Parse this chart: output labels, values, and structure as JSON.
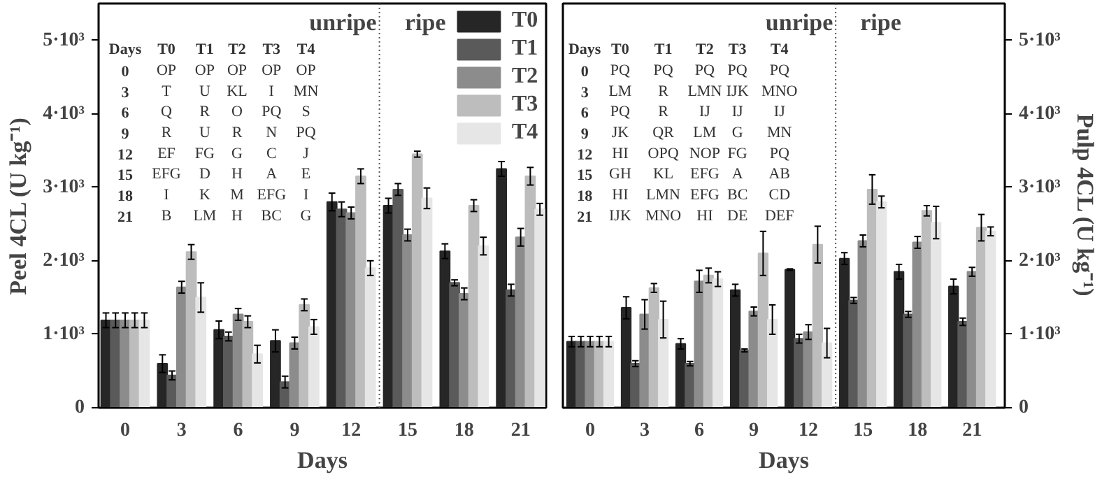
{
  "chart_data": [
    {
      "type": "bar",
      "xlabel": "Days",
      "ylabel": "Peel 4CL (U kg⁻¹)",
      "categories": [
        "0",
        "3",
        "6",
        "9",
        "12",
        "15",
        "18",
        "21"
      ],
      "series": [
        {
          "name": "T0",
          "color": "#262626",
          "values": [
            1190,
            600,
            1060,
            910,
            2800,
            2750,
            2130,
            3250
          ],
          "errors": [
            100,
            120,
            120,
            150,
            120,
            100,
            100,
            100
          ]
        },
        {
          "name": "T1",
          "color": "#5a5a5a",
          "values": [
            1190,
            440,
            970,
            350,
            2700,
            2970,
            1700,
            1600
          ],
          "errors": [
            100,
            60,
            60,
            80,
            100,
            80,
            40,
            80
          ]
        },
        {
          "name": "T2",
          "color": "#8c8c8c",
          "values": [
            1190,
            1640,
            1270,
            880,
            2650,
            2350,
            1550,
            2320
          ],
          "errors": [
            100,
            80,
            80,
            80,
            80,
            80,
            80,
            120
          ]
        },
        {
          "name": "T3",
          "color": "#bdbdbd",
          "values": [
            1190,
            2120,
            1170,
            1400,
            3150,
            3450,
            2750,
            3150
          ],
          "errors": [
            100,
            100,
            80,
            80,
            100,
            40,
            80,
            120
          ]
        },
        {
          "name": "T4",
          "color": "#e6e6e6",
          "values": [
            1190,
            1500,
            730,
            1100,
            1900,
            2850,
            2200,
            2700
          ],
          "errors": [
            100,
            200,
            120,
            100,
            100,
            140,
            120,
            80
          ]
        }
      ],
      "ylim": [
        0,
        5500
      ],
      "yticks": [
        0,
        {
          "value": 1000,
          "label": "1·10³"
        },
        {
          "value": 2000,
          "label": "2·10³"
        },
        {
          "value": 3000,
          "label": "3·10³"
        },
        {
          "value": 4000,
          "label": "4·10³"
        },
        {
          "value": 5000,
          "label": "5·10³"
        }
      ],
      "legend": "top right",
      "grid": false,
      "annotations": [
        "unripe",
        "ripe",
        "Days",
        "T0",
        "T1",
        "T2",
        "T3",
        "T4",
        "0",
        "OP",
        "OP",
        "OP",
        "OP",
        "OP",
        "3",
        "T",
        "U",
        "KL",
        "I",
        "MN",
        "6",
        "Q",
        "R",
        "O",
        "PQ",
        "S",
        "9",
        "R",
        "U",
        "R",
        "N",
        "PQ",
        "12",
        "EF",
        "FG",
        "G",
        "C",
        "J",
        "15",
        "EFG",
        "D",
        "H",
        "A",
        "E",
        "18",
        "I",
        "K",
        "M",
        "EFG",
        "I",
        "21",
        "B",
        "LM",
        "H",
        "BC",
        "G"
      ]
    },
    {
      "type": "bar",
      "xlabel": "Days",
      "y2label": "Pulp 4CL (U kg⁻¹)",
      "categories": [
        "0",
        "3",
        "6",
        "9",
        "12",
        "15",
        "18",
        "21"
      ],
      "series": [
        {
          "color": "#262626",
          "axis": "y2",
          "values": [
            900,
            1360,
            870,
            1600,
            1880,
            2030,
            1850,
            1650
          ],
          "errors": [
            70,
            150,
            70,
            80,
            10,
            80,
            100,
            100
          ]
        },
        {
          "color": "#5a5a5a",
          "axis": "y2",
          "values": [
            900,
            600,
            600,
            780,
            940,
            1460,
            1270,
            1170
          ],
          "errors": [
            70,
            40,
            30,
            20,
            60,
            40,
            40,
            50
          ]
        },
        {
          "color": "#8c8c8c",
          "axis": "y2",
          "values": [
            900,
            1270,
            1720,
            1310,
            1030,
            2270,
            2250,
            1850
          ],
          "errors": [
            70,
            200,
            150,
            60,
            100,
            80,
            80,
            60
          ]
        },
        {
          "color": "#bdbdbd",
          "axis": "y2",
          "values": [
            900,
            1630,
            1800,
            2100,
            2220,
            2970,
            2680,
            2450
          ],
          "errors": [
            70,
            60,
            100,
            300,
            250,
            200,
            70,
            180
          ]
        },
        {
          "color": "#e6e6e6",
          "axis": "y2",
          "values": [
            900,
            1200,
            1750,
            1200,
            880,
            2800,
            2520,
            2400
          ],
          "errors": [
            70,
            250,
            100,
            200,
            200,
            80,
            220,
            60
          ]
        }
      ],
      "y2lim": [
        0,
        5500
      ],
      "y2ticks": [
        0,
        {
          "value": 1000,
          "label": "1·10³"
        },
        {
          "value": 2000,
          "label": "2·10³"
        },
        {
          "value": 3000,
          "label": "3·10³"
        },
        {
          "value": 4000,
          "label": "4·10³"
        },
        {
          "value": 5000,
          "label": "5·10³"
        }
      ],
      "tick_labels": "x",
      "grid": false,
      "annotations": [
        "unripe",
        "ripe",
        "Days",
        "T0",
        "T1",
        "T2",
        "T3",
        "T4",
        "0",
        "PQ",
        "PQ",
        "PQ",
        "PQ",
        "PQ",
        "3",
        "LM",
        "R",
        "LMN",
        "IJK",
        "MNO",
        "6",
        "PQ",
        "R",
        "IJ",
        "IJ",
        "IJ",
        "9",
        "JK",
        "QR",
        "LM",
        "G",
        "MN",
        "12",
        "HI",
        "OPQ",
        "NOP",
        "FG",
        "PQ",
        "15",
        "GH",
        "KL",
        "EFG",
        "A",
        "AB",
        "18",
        "HI",
        "LMN",
        "EFG",
        "BC",
        "CD",
        "21",
        "IJK",
        "MNO",
        "HI",
        "DE",
        "DEF"
      ]
    }
  ]
}
